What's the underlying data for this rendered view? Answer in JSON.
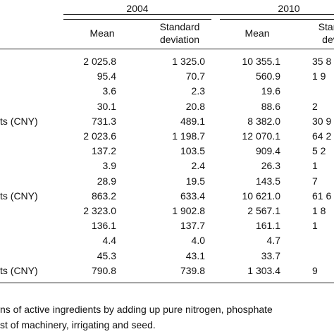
{
  "header": {
    "year_groups": [
      "2004",
      "2010"
    ],
    "columns": [
      [
        "Mean"
      ],
      [
        "Standard",
        "deviation"
      ],
      [
        "Mean"
      ],
      [
        "Stand",
        "devi"
      ]
    ]
  },
  "rows": [
    {
      "label": null,
      "cells": [
        "2 025.8",
        "1 325.0",
        "10 355.1",
        "35 8"
      ]
    },
    {
      "label": null,
      "cells": [
        "95.4",
        "70.7",
        "560.9",
        "1 9"
      ]
    },
    {
      "label": null,
      "cells": [
        "3.6",
        "2.3",
        "19.6",
        null
      ]
    },
    {
      "label": null,
      "cells": [
        "30.1",
        "20.8",
        "88.6",
        "2"
      ]
    },
    {
      "label": "ts (CNY)",
      "cells": [
        "731.3",
        "489.1",
        "8 382.0",
        "30 9"
      ]
    },
    {
      "label": null,
      "cells": [
        "2 023.6",
        "1 198.7",
        "12 070.1",
        "64 2"
      ]
    },
    {
      "label": null,
      "cells": [
        "137.2",
        "103.5",
        "909.4",
        "5 2"
      ]
    },
    {
      "label": null,
      "cells": [
        "3.9",
        "2.4",
        "26.3",
        "1"
      ]
    },
    {
      "label": null,
      "cells": [
        "28.9",
        "19.5",
        "143.5",
        "7"
      ]
    },
    {
      "label": "ts (CNY)",
      "cells": [
        "863.2",
        "633.4",
        "10 621.0",
        "61 6"
      ]
    },
    {
      "label": null,
      "cells": [
        "2 323.0",
        "1 902.8",
        "2 567.1",
        "1 8"
      ]
    },
    {
      "label": null,
      "cells": [
        "136.1",
        "137.7",
        "161.1",
        "1"
      ]
    },
    {
      "label": null,
      "cells": [
        "4.4",
        "4.0",
        "4.7",
        null
      ]
    },
    {
      "label": null,
      "cells": [
        "45.3",
        "43.1",
        "33.7",
        null
      ]
    },
    {
      "label": "ts (CNY)",
      "cells": [
        "790.8",
        "739.8",
        "1 303.4",
        "9"
      ]
    }
  ],
  "footer": {
    "lines": [
      "ns of active ingredients by adding up pure nitrogen, phosphate",
      "st of machinery, irrigating and seed."
    ]
  }
}
